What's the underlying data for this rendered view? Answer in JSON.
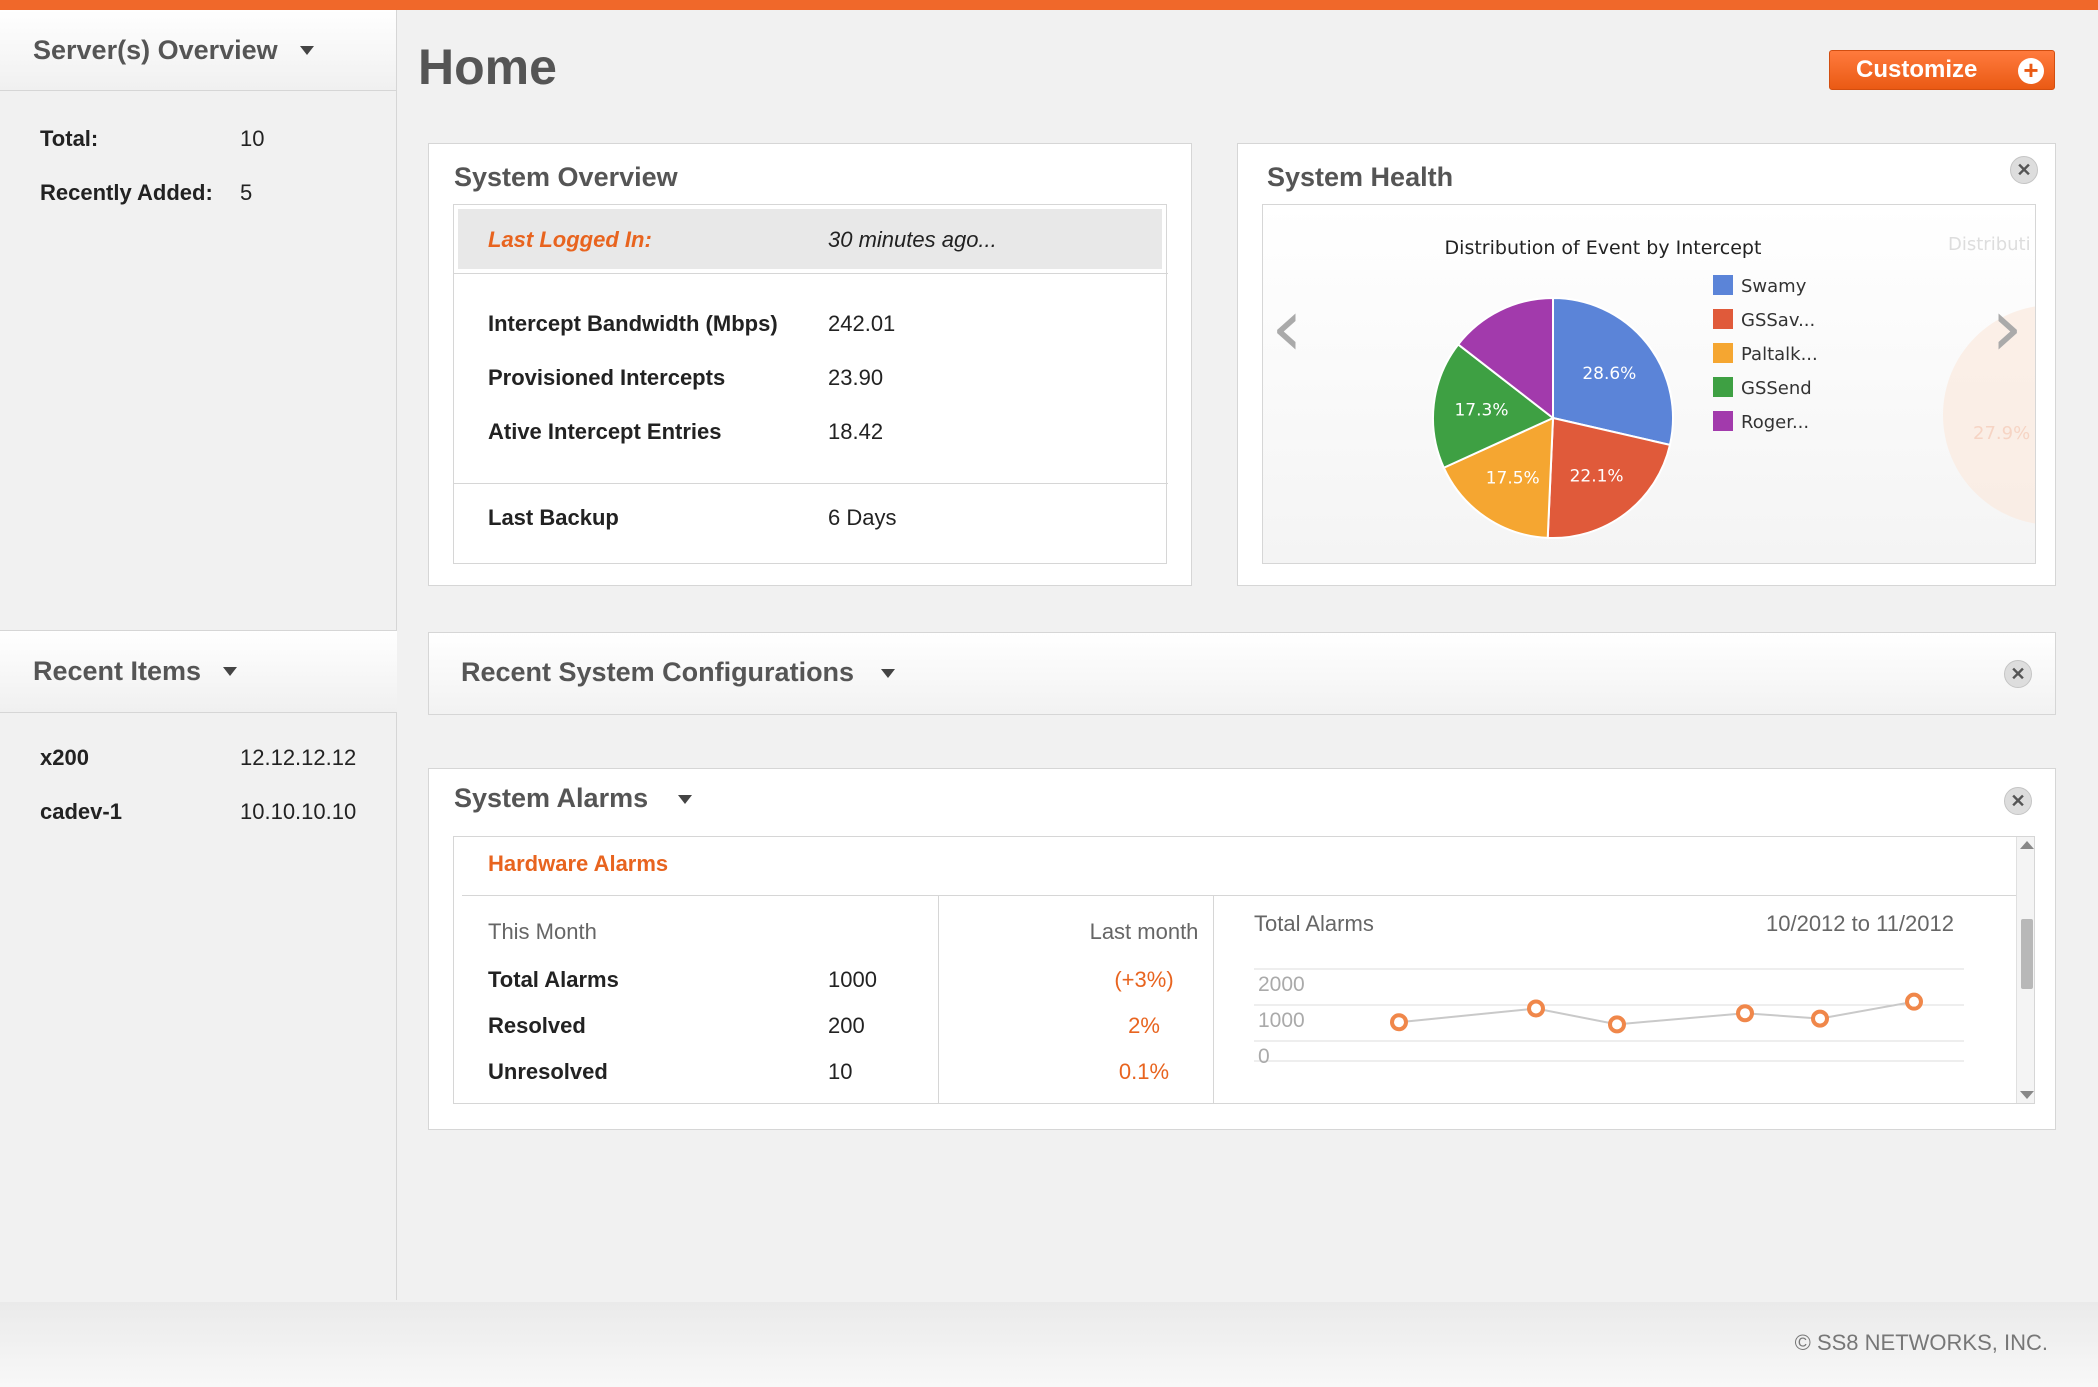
{
  "sidebar": {
    "servers_title": "Server(s) Overview",
    "total_label": "Total:",
    "total_value": "10",
    "recent_label": "Recently Added:",
    "recent_value": "5",
    "recent_items_title": "Recent Items",
    "recent_items": [
      {
        "name": "x200",
        "ip": "12.12.12.12"
      },
      {
        "name": "cadev-1",
        "ip": "10.10.10.10"
      }
    ]
  },
  "header": {
    "title": "Home",
    "customize_label": "Customize",
    "plus": "+"
  },
  "system_overview": {
    "title": "System Overview",
    "last_logged_label": "Last Logged In:",
    "last_logged_value": "30 minutes ago...",
    "rows": [
      {
        "label": "Intercept Bandwidth (Mbps)",
        "value": "242.01"
      },
      {
        "label": "Provisioned Intercepts",
        "value": "23.90"
      },
      {
        "label": "Ative Intercept Entries",
        "value": "18.42"
      }
    ],
    "backup_label": "Last Backup",
    "backup_value": "6 Days"
  },
  "system_health": {
    "title": "System Health",
    "next_chart_title": "Distributi",
    "next_chart_label": "27.9%"
  },
  "chart_data": [
    {
      "type": "pie",
      "title": "Distribution of Event by Intercept",
      "legend_position": "right",
      "categories": [
        "Swamy",
        "GSSav...",
        "Paltalk...",
        "GSSend",
        "Roger..."
      ],
      "values": [
        28.6,
        22.1,
        17.5,
        17.3,
        14.5
      ],
      "labels": [
        "28.6%",
        "22.1%",
        "17.5%",
        "17.3%",
        ""
      ],
      "colors": [
        "#5b84d8",
        "#e05a3a",
        "#f5a631",
        "#3ea043",
        "#a23aac"
      ]
    },
    {
      "type": "line",
      "title": "Total Alarms",
      "subtitle": "10/2012 to 11/2012",
      "yticks": [
        "2000",
        "1000",
        "0"
      ],
      "ylim": [
        0,
        2000
      ],
      "values": [
        800,
        1180,
        740,
        1050,
        900,
        1370
      ],
      "grid": true,
      "color": "#f0874a"
    }
  ],
  "recent_configs": {
    "title": "Recent System Configurations"
  },
  "system_alarms": {
    "title": "System Alarms",
    "section": "Hardware Alarms",
    "this_month": "This Month",
    "last_month": "Last month",
    "rows": [
      {
        "label": "Total Alarms",
        "value": "1000",
        "change": "(+3%)"
      },
      {
        "label": "Resolved",
        "value": "200",
        "change": "2%"
      },
      {
        "label": "Unresolved",
        "value": "10",
        "change": "0.1%"
      }
    ]
  },
  "footer": {
    "copyright": "© SS8 NETWORKS, INC."
  },
  "icons": {
    "close": "✕",
    "left": "‹",
    "right": "›"
  }
}
